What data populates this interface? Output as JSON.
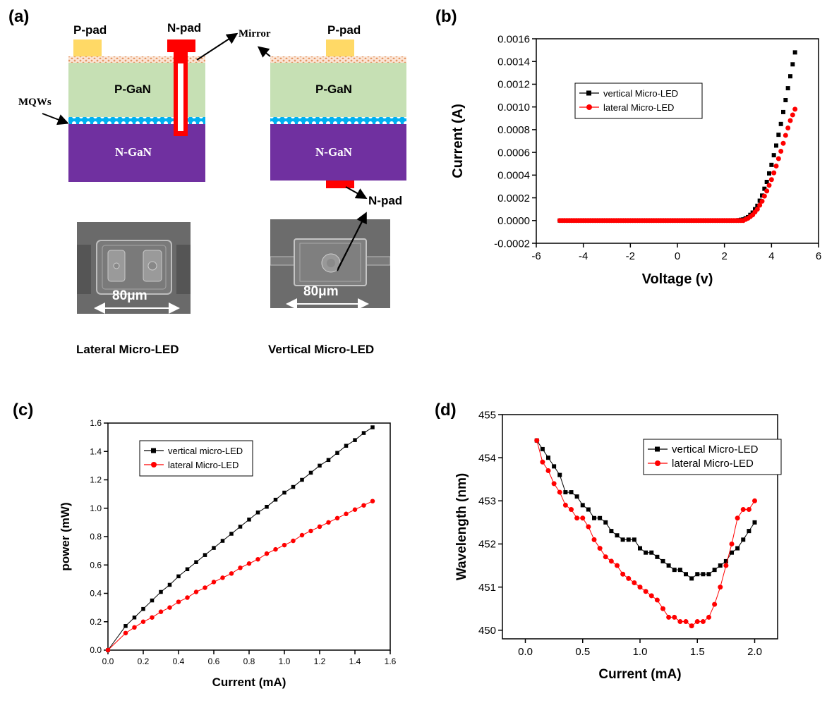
{
  "panels": {
    "a": "(a)",
    "b": "(b)",
    "c": "(c)",
    "d": "(d)"
  },
  "schematic": {
    "p_pad": "P-pad",
    "n_pad": "N-pad",
    "mirror": "Mirror",
    "mqws": "MQWs",
    "p_gan": "P-GaN",
    "n_gan": "N-GaN",
    "n_pad_bottom": "N-pad",
    "scale": "80μm",
    "lateral_caption": "Lateral Micro-LED",
    "vertical_caption": "Vertical Micro-LED"
  },
  "colors": {
    "black_series": "#000000",
    "red_series": "#ff0000",
    "p_gan": "#c6e0b4",
    "n_gan": "#7030a0",
    "pad": "#ffd966",
    "n_contact": "#ff0000",
    "mqw": "#00b0f0"
  },
  "chart_data": [
    {
      "panel": "(b)",
      "type": "scatter",
      "xlabel": "Voltage (v)",
      "ylabel": "Current (A)",
      "xlim": [
        -6,
        6
      ],
      "ylim": [
        -0.0002,
        0.0016
      ],
      "xticks": [
        "-6",
        "-4",
        "-2",
        "0",
        "2",
        "4",
        "6"
      ],
      "yticks": [
        "-0.0002",
        "0.0000",
        "0.0002",
        "0.0004",
        "0.0006",
        "0.0008",
        "0.0010",
        "0.0012",
        "0.0014",
        "0.0016"
      ],
      "legend": "upper-left",
      "series": [
        {
          "name": "vertical Micro-LED",
          "marker": "square",
          "color": "#000000",
          "x": [
            -5.0,
            0.0,
            2.5,
            2.8,
            3.0,
            3.2,
            3.4,
            3.6,
            3.8,
            4.0,
            4.2,
            4.4,
            4.6,
            4.8,
            5.0
          ],
          "y": [
            0.0,
            0.0,
            0.0,
            1e-05,
            3e-05,
            7e-05,
            0.00013,
            0.00022,
            0.00034,
            0.00049,
            0.00066,
            0.00085,
            0.00106,
            0.00127,
            0.00148
          ]
        },
        {
          "name": "lateral Micro-LED",
          "marker": "circle",
          "color": "#ff0000",
          "x": [
            -5.0,
            0.0,
            2.5,
            2.8,
            3.0,
            3.2,
            3.4,
            3.6,
            3.8,
            4.0,
            4.2,
            4.4,
            4.6,
            4.8,
            5.0
          ],
          "y": [
            0.0,
            0.0,
            0.0,
            0.0,
            2e-05,
            5e-05,
            0.0001,
            0.00017,
            0.00026,
            0.00036,
            0.00048,
            0.00061,
            0.00075,
            0.00088,
            0.00098
          ]
        }
      ]
    },
    {
      "panel": "(c)",
      "type": "line",
      "xlabel": "Current (mA)",
      "ylabel": "power (mW)",
      "xlim": [
        0,
        1.6
      ],
      "ylim": [
        0,
        1.6
      ],
      "xticks": [
        "0.0",
        "0.2",
        "0.4",
        "0.6",
        "0.8",
        "1.0",
        "1.2",
        "1.4",
        "1.6"
      ],
      "yticks": [
        "0.0",
        "0.2",
        "0.4",
        "0.6",
        "0.8",
        "1.0",
        "1.2",
        "1.4",
        "1.6"
      ],
      "legend": "upper-left",
      "series": [
        {
          "name": "vertical micro-LED",
          "marker": "square",
          "color": "#000000",
          "x": [
            0.0,
            0.1,
            0.15,
            0.2,
            0.25,
            0.3,
            0.35,
            0.4,
            0.45,
            0.5,
            0.55,
            0.6,
            0.65,
            0.7,
            0.75,
            0.8,
            0.85,
            0.9,
            0.95,
            1.0,
            1.05,
            1.1,
            1.15,
            1.2,
            1.25,
            1.3,
            1.35,
            1.4,
            1.45,
            1.5
          ],
          "y": [
            0.0,
            0.17,
            0.23,
            0.29,
            0.35,
            0.41,
            0.46,
            0.52,
            0.57,
            0.62,
            0.67,
            0.72,
            0.77,
            0.82,
            0.87,
            0.92,
            0.97,
            1.01,
            1.06,
            1.11,
            1.15,
            1.2,
            1.25,
            1.3,
            1.34,
            1.39,
            1.44,
            1.48,
            1.53,
            1.57
          ]
        },
        {
          "name": "lateral Micro-LED",
          "marker": "circle",
          "color": "#ff0000",
          "x": [
            0.0,
            0.1,
            0.15,
            0.2,
            0.25,
            0.3,
            0.35,
            0.4,
            0.45,
            0.5,
            0.55,
            0.6,
            0.65,
            0.7,
            0.75,
            0.8,
            0.85,
            0.9,
            0.95,
            1.0,
            1.05,
            1.1,
            1.15,
            1.2,
            1.25,
            1.3,
            1.35,
            1.4,
            1.45,
            1.5
          ],
          "y": [
            0.0,
            0.12,
            0.16,
            0.2,
            0.23,
            0.27,
            0.3,
            0.34,
            0.37,
            0.41,
            0.44,
            0.48,
            0.51,
            0.54,
            0.58,
            0.61,
            0.64,
            0.68,
            0.71,
            0.74,
            0.77,
            0.81,
            0.84,
            0.87,
            0.9,
            0.93,
            0.96,
            0.99,
            1.02,
            1.05
          ]
        }
      ]
    },
    {
      "panel": "(d)",
      "type": "line",
      "xlabel": "Current (mA)",
      "ylabel": "Wavelength (nm)",
      "xlim": [
        -0.2,
        2.2
      ],
      "ylim": [
        449.8,
        455
      ],
      "xticks": [
        "0.0",
        "0.5",
        "1.0",
        "1.5",
        "2.0"
      ],
      "yticks": [
        "450",
        "451",
        "452",
        "453",
        "454",
        "455"
      ],
      "legend": "upper-right",
      "series": [
        {
          "name": "vertical Micro-LED",
          "marker": "square",
          "color": "#000000",
          "x": [
            0.1,
            0.15,
            0.2,
            0.25,
            0.3,
            0.35,
            0.4,
            0.45,
            0.5,
            0.55,
            0.6,
            0.65,
            0.7,
            0.75,
            0.8,
            0.85,
            0.9,
            0.95,
            1.0,
            1.05,
            1.1,
            1.15,
            1.2,
            1.25,
            1.3,
            1.35,
            1.4,
            1.45,
            1.5,
            1.55,
            1.6,
            1.65,
            1.7,
            1.75,
            1.8,
            1.85,
            1.9,
            1.95,
            2.0
          ],
          "y": [
            454.4,
            454.2,
            454.0,
            453.8,
            453.6,
            453.2,
            453.2,
            453.1,
            452.9,
            452.8,
            452.6,
            452.6,
            452.5,
            452.3,
            452.2,
            452.1,
            452.1,
            452.1,
            451.9,
            451.8,
            451.8,
            451.7,
            451.6,
            451.5,
            451.4,
            451.4,
            451.3,
            451.2,
            451.3,
            451.3,
            451.3,
            451.4,
            451.5,
            451.6,
            451.8,
            451.9,
            452.1,
            452.3,
            452.5
          ]
        },
        {
          "name": "lateral Micro-LED",
          "marker": "circle",
          "color": "#ff0000",
          "x": [
            0.1,
            0.15,
            0.2,
            0.25,
            0.3,
            0.35,
            0.4,
            0.45,
            0.5,
            0.55,
            0.6,
            0.65,
            0.7,
            0.75,
            0.8,
            0.85,
            0.9,
            0.95,
            1.0,
            1.05,
            1.1,
            1.15,
            1.2,
            1.25,
            1.3,
            1.35,
            1.4,
            1.45,
            1.5,
            1.55,
            1.6,
            1.65,
            1.7,
            1.75,
            1.8,
            1.85,
            1.9,
            1.95,
            2.0
          ],
          "y": [
            454.4,
            453.9,
            453.7,
            453.4,
            453.2,
            452.9,
            452.8,
            452.6,
            452.6,
            452.4,
            452.1,
            451.9,
            451.7,
            451.6,
            451.5,
            451.3,
            451.2,
            451.1,
            451.0,
            450.9,
            450.8,
            450.7,
            450.5,
            450.3,
            450.3,
            450.2,
            450.2,
            450.1,
            450.2,
            450.2,
            450.3,
            450.6,
            451.0,
            451.5,
            452.0,
            452.6,
            452.8,
            452.8,
            453.0
          ]
        }
      ]
    }
  ]
}
